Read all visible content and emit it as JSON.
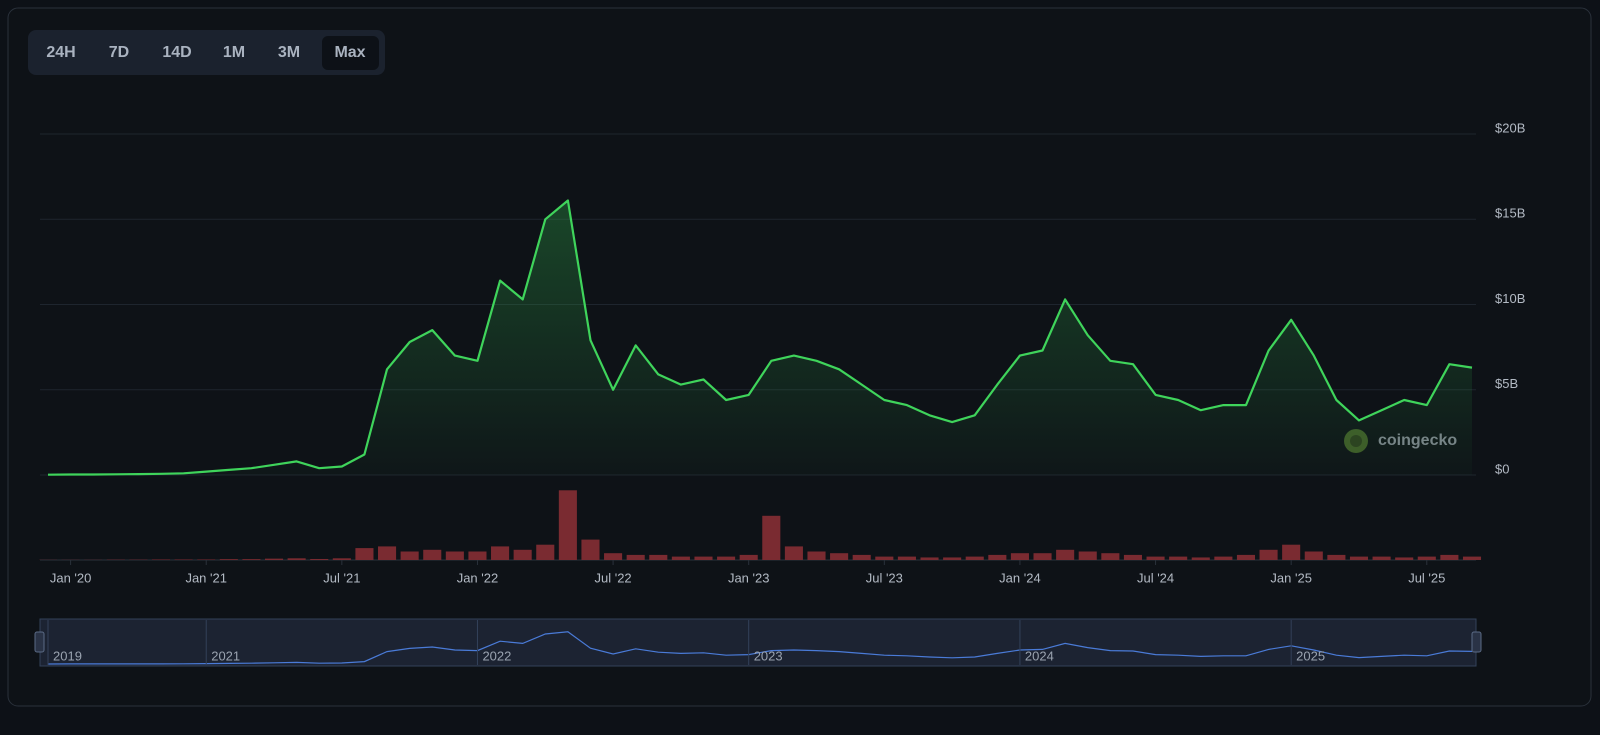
{
  "range_buttons": [
    "24H",
    "7D",
    "14D",
    "1M",
    "3M",
    "Max"
  ],
  "watermark": "coingecko",
  "chart_data": {
    "type": "area",
    "x": [
      "2019-11",
      "2020-01",
      "2020-03",
      "2020-05",
      "2020-07",
      "2020-09",
      "2020-11",
      "2021-01",
      "2021-02",
      "2021-03",
      "2021-04",
      "2021-05",
      "2021-06",
      "2021-07",
      "2021-08",
      "2021-09",
      "2021-10",
      "2021-11",
      "2021-12",
      "2022-01",
      "2022-02",
      "2022-03",
      "2022-04",
      "2022-05",
      "2022-06",
      "2022-07",
      "2022-08",
      "2022-09",
      "2022-10",
      "2022-11",
      "2022-12",
      "2023-01",
      "2023-02",
      "2023-03",
      "2023-04",
      "2023-05",
      "2023-06",
      "2023-07",
      "2023-08",
      "2023-09",
      "2023-10",
      "2023-11",
      "2023-12",
      "2024-01",
      "2024-02",
      "2024-03",
      "2024-04",
      "2024-05",
      "2024-06",
      "2024-07",
      "2024-08",
      "2024-09",
      "2024-10",
      "2024-11",
      "2024-12",
      "2025-01",
      "2025-02",
      "2025-03",
      "2025-04",
      "2025-05",
      "2025-06",
      "2025-07",
      "2025-08",
      "2025-09"
    ],
    "series": [
      {
        "color": "#3fd45b",
        "values": [
          20000000.0,
          30000000.0,
          30000000.0,
          40000000.0,
          50000000.0,
          70000000.0,
          100000000.0,
          200000000.0,
          300000000.0,
          400000000.0,
          600000000.0,
          800000000.0,
          400000000.0,
          500000000.0,
          1200000000.0,
          6200000000.0,
          7800000000.0,
          8500000000.0,
          7000000000.0,
          6700000000.0,
          11400000000.0,
          10300000000.0,
          15000000000.0,
          16100000000.0,
          7900000000.0,
          5000000000.0,
          7600000000.0,
          5900000000.0,
          5300000000.0,
          5600000000.0,
          4400000000.0,
          4700000000.0,
          6700000000.0,
          7000000000.0,
          6700000000.0,
          6200000000.0,
          5300000000.0,
          4400000000.0,
          4100000000.0,
          3500000000.0,
          3100000000.0,
          3500000000.0,
          5300000000.0,
          7000000000.0,
          7300000000.0,
          10300000000.0,
          8200000000.0,
          6700000000.0,
          6500000000.0,
          4700000000.0,
          4400000000.0,
          3800000000.0,
          4100000000.0,
          4100000000.0,
          7300000000.0,
          9100000000.0,
          7000000000.0,
          4400000000.0,
          3200000000.0,
          3800000000.0,
          4400000000.0,
          4100000000.0,
          6500000000.0,
          6300000000.0
        ]
      },
      {
        "color": "#7a2b31",
        "axis": "y2",
        "values": [
          10000000.0,
          10000000.0,
          10000000.0,
          20000000.0,
          20000000.0,
          30000000.0,
          30000000.0,
          30000000.0,
          50000000.0,
          50000000.0,
          80000000.0,
          100000000.0,
          60000000.0,
          100000000.0,
          700000000.0,
          800000000.0,
          500000000.0,
          600000000.0,
          500000000.0,
          500000000.0,
          800000000.0,
          600000000.0,
          900000000.0,
          4100000000.0,
          1200000000.0,
          400000000.0,
          300000000.0,
          300000000.0,
          200000000.0,
          200000000.0,
          200000000.0,
          300000000.0,
          2600000000.0,
          800000000.0,
          500000000.0,
          400000000.0,
          300000000.0,
          200000000.0,
          200000000.0,
          150000000.0,
          150000000.0,
          200000000.0,
          300000000.0,
          400000000.0,
          400000000.0,
          600000000.0,
          500000000.0,
          400000000.0,
          300000000.0,
          200000000.0,
          200000000.0,
          150000000.0,
          200000000.0,
          300000000.0,
          600000000.0,
          900000000.0,
          500000000.0,
          300000000.0,
          200000000.0,
          200000000.0,
          150000000.0,
          200000000.0,
          300000000.0,
          200000000.0
        ]
      }
    ],
    "ylim": [
      0,
      20000000000.0
    ],
    "yticks": [
      {
        "value": 0,
        "label": "$0"
      },
      {
        "value": 5000000000.0,
        "label": "$5B"
      },
      {
        "value": 10000000000.0,
        "label": "$10B"
      },
      {
        "value": 15000000000.0,
        "label": "$15B"
      },
      {
        "value": 20000000000.0,
        "label": "$20B"
      }
    ],
    "y2lim": [
      0,
      5000000000.0
    ],
    "xticks": [
      {
        "value": "2020-01",
        "label": "Jan '20"
      },
      {
        "value": "2021-01",
        "label": "Jan '21"
      },
      {
        "value": "2021-07",
        "label": "Jul '21"
      },
      {
        "value": "2022-01",
        "label": "Jan '22"
      },
      {
        "value": "2022-07",
        "label": "Jul '22"
      },
      {
        "value": "2023-01",
        "label": "Jan '23"
      },
      {
        "value": "2023-07",
        "label": "Jul '23"
      },
      {
        "value": "2024-01",
        "label": "Jan '24"
      },
      {
        "value": "2024-07",
        "label": "Jul '24"
      },
      {
        "value": "2025-01",
        "label": "Jan '25"
      },
      {
        "value": "2025-07",
        "label": "Jul '25"
      }
    ],
    "navigator_ticks": [
      {
        "value": "2019-11",
        "label": "2019"
      },
      {
        "value": "2021-01",
        "label": "2021"
      },
      {
        "value": "2022-01",
        "label": "2022"
      },
      {
        "value": "2023-01",
        "label": "2023"
      },
      {
        "value": "2024-01",
        "label": "2024"
      },
      {
        "value": "2025-01",
        "label": "2025"
      }
    ],
    "grid": true
  }
}
